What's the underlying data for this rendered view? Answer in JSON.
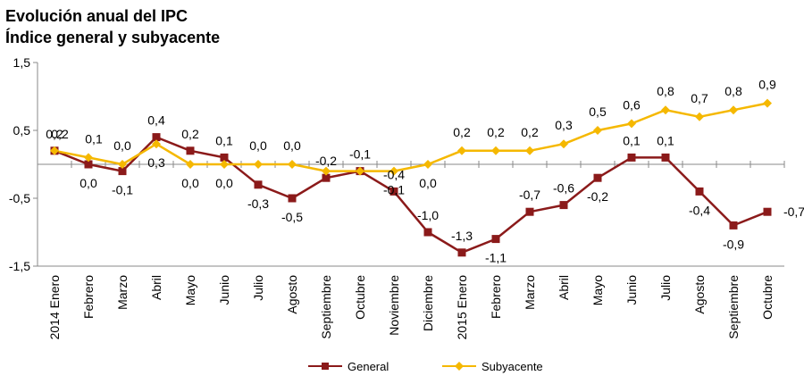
{
  "chart_data": {
    "type": "line",
    "title": "Evolución anual del IPC",
    "subtitle": "Índice general y subyacente",
    "categories": [
      "2014 Enero",
      "Febrero",
      "Marzo",
      "Abril",
      "Mayo",
      "Junio",
      "Julio",
      "Agosto",
      "Septiembre",
      "Octubre",
      "Noviembre",
      "Diciembre",
      "2015 Enero",
      "Febrero",
      "Marzo",
      "Abril",
      "Mayo",
      "Junio",
      "Julio",
      "Agosto",
      "Septiembre",
      "Octubre"
    ],
    "series": [
      {
        "name": "General",
        "color": "#8b1a1a",
        "marker": "square",
        "values": [
          0.2,
          0.0,
          -0.1,
          0.4,
          0.2,
          0.1,
          -0.3,
          -0.5,
          -0.2,
          -0.1,
          -0.4,
          -1.0,
          -1.3,
          -1.1,
          -0.7,
          -0.6,
          -0.2,
          0.1,
          0.1,
          -0.4,
          -0.9,
          -0.7
        ],
        "labels": [
          "0,2",
          "0,0",
          "-0,1",
          "0,4",
          "0,2",
          "0,1",
          "-0,3",
          "-0,5",
          "-0,2",
          "-0,1",
          "-0,4",
          "-1,0",
          "-1,3",
          "-1,1",
          "-0,7",
          "-0,6",
          "-0,2",
          "0,1",
          "0,1",
          "-0,4",
          "-0,9",
          "-0,7"
        ]
      },
      {
        "name": "Subyacente",
        "color": "#f5b800",
        "marker": "diamond",
        "values": [
          0.2,
          0.1,
          0.0,
          0.3,
          0.0,
          0.0,
          0.0,
          0.0,
          -0.1,
          -0.1,
          -0.1,
          0.0,
          0.2,
          0.2,
          0.2,
          0.3,
          0.5,
          0.6,
          0.8,
          0.7,
          0.8,
          0.9
        ],
        "labels": [
          "0,2",
          "0,1",
          "0,0",
          "0,3",
          "0,0",
          "0,0",
          "0,0",
          "0,0",
          "",
          "",
          "-0,1",
          "0,0",
          "0,2",
          "0,2",
          "0,2",
          "0,3",
          "0,5",
          "0,6",
          "0,8",
          "0,7",
          "0,8",
          "0,9"
        ]
      }
    ],
    "ylim": [
      -1.5,
      1.5
    ],
    "yticks": [
      1.5,
      0.5,
      -0.5,
      -1.5
    ],
    "ytick_labels": [
      "1,5",
      "0,5",
      "-0,5",
      "-1,5"
    ],
    "grid": false,
    "legend_position": "bottom"
  }
}
